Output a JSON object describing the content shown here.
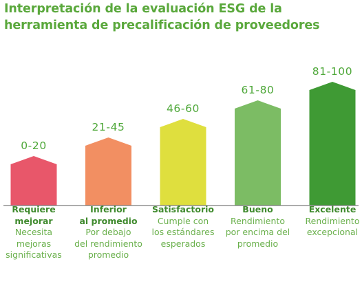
{
  "title": "Interpretación de la evaluación ESG de la herramienta de precalificación de proveedores",
  "colors": {
    "title": "#5aa83c",
    "range_label": "#4fa83a",
    "category_name": "#3f8a2d",
    "category_desc": "#6ab04c",
    "baseline": "#7a7a7a"
  },
  "chart_data": {
    "type": "bar",
    "title": "Interpretación de la evaluación ESG de la herramienta de precalificación de proveedores",
    "categories": [
      "Requiere mejorar",
      "Inferior al promedio",
      "Satisfactorio",
      "Bueno",
      "Excelente"
    ],
    "series": [
      {
        "values": [
          1,
          2,
          3,
          4,
          5
        ]
      }
    ],
    "bars": [
      {
        "range": "0-20",
        "name_lines": [
          "Requiere",
          "mejorar"
        ],
        "desc_lines": [
          "Necesita",
          "mejoras",
          "significativas"
        ],
        "level": 1,
        "color": "#e8576a"
      },
      {
        "range": "21-45",
        "name_lines": [
          "Inferior",
          "al promedio"
        ],
        "desc_lines": [
          "Por debajo",
          "del rendimiento",
          "promedio"
        ],
        "level": 2,
        "color": "#f28f62"
      },
      {
        "range": "46-60",
        "name_lines": [
          "Satisfactorio"
        ],
        "desc_lines": [
          "Cumple con",
          "los estándares",
          "esperados"
        ],
        "level": 3,
        "color": "#dfdf3e"
      },
      {
        "range": "61-80",
        "name_lines": [
          "Bueno"
        ],
        "desc_lines": [
          "Rendimiento",
          "por encima del",
          "promedio"
        ],
        "level": 4,
        "color": "#7cbc64"
      },
      {
        "range": "81-100",
        "name_lines": [
          "Excelente"
        ],
        "desc_lines": [
          "Rendimiento",
          "excepcional"
        ],
        "level": 5,
        "color": "#3f9a34"
      }
    ],
    "ylim": [
      0,
      5
    ],
    "grid": false,
    "legend": "none"
  }
}
